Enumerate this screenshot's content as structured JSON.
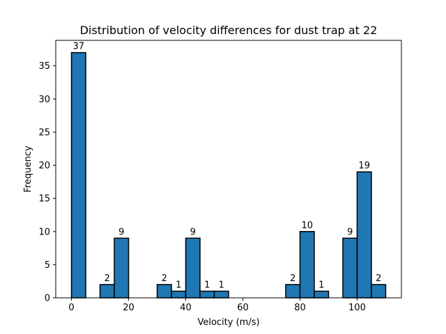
{
  "chart_data": {
    "type": "bar",
    "title": "Distribution of velocity differences for dust trap at 22",
    "xlabel": "Velocity (m/s)",
    "ylabel": "Frequency",
    "xlim": [
      -5.5,
      115.5
    ],
    "ylim": [
      0,
      38.85
    ],
    "xticks": [
      0,
      20,
      40,
      60,
      80,
      100
    ],
    "yticks": [
      0,
      5,
      10,
      15,
      20,
      25,
      30,
      35
    ],
    "bin_width": 5,
    "bins": [
      {
        "x0": 0,
        "x1": 5,
        "value": 37
      },
      {
        "x0": 5,
        "x1": 10,
        "value": 0
      },
      {
        "x0": 10,
        "x1": 15,
        "value": 2
      },
      {
        "x0": 15,
        "x1": 20,
        "value": 9
      },
      {
        "x0": 20,
        "x1": 25,
        "value": 0
      },
      {
        "x0": 25,
        "x1": 30,
        "value": 0
      },
      {
        "x0": 30,
        "x1": 35,
        "value": 2
      },
      {
        "x0": 35,
        "x1": 40,
        "value": 1
      },
      {
        "x0": 40,
        "x1": 45,
        "value": 9
      },
      {
        "x0": 45,
        "x1": 50,
        "value": 1
      },
      {
        "x0": 50,
        "x1": 55,
        "value": 1
      },
      {
        "x0": 55,
        "x1": 60,
        "value": 0
      },
      {
        "x0": 60,
        "x1": 65,
        "value": 0
      },
      {
        "x0": 65,
        "x1": 70,
        "value": 0
      },
      {
        "x0": 70,
        "x1": 75,
        "value": 0
      },
      {
        "x0": 75,
        "x1": 80,
        "value": 2
      },
      {
        "x0": 80,
        "x1": 85,
        "value": 10
      },
      {
        "x0": 85,
        "x1": 90,
        "value": 1
      },
      {
        "x0": 90,
        "x1": 95,
        "value": 0
      },
      {
        "x0": 95,
        "x1": 100,
        "value": 9
      },
      {
        "x0": 100,
        "x1": 105,
        "value": 19
      },
      {
        "x0": 105,
        "x1": 110,
        "value": 2
      }
    ],
    "bar_color": "#1f77b4",
    "edge_color": "#000000",
    "grid": false,
    "legend": "none"
  }
}
